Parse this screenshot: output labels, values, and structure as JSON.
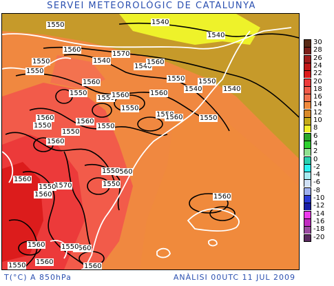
{
  "title": "SERVEI METEOROLÒGIC DE CATALUNYA",
  "footer": {
    "variable": "T(°C) A 850hPa",
    "analysis": "ANÀLISI 00UTC 11 JUL 2009"
  },
  "legend": [
    {
      "label": "30",
      "color": "#5a2a16"
    },
    {
      "label": "28",
      "color": "#7a1f1a"
    },
    {
      "label": "26",
      "color": "#a01c1c"
    },
    {
      "label": "24",
      "color": "#c21818"
    },
    {
      "label": "22",
      "color": "#dc1c1c"
    },
    {
      "label": "20",
      "color": "#ec3a3a"
    },
    {
      "label": "18",
      "color": "#f25b4a"
    },
    {
      "label": "16",
      "color": "#f3724f"
    },
    {
      "label": "14",
      "color": "#f08a3c"
    },
    {
      "label": "12",
      "color": "#d98a2a"
    },
    {
      "label": "10",
      "color": "#c5aa18"
    },
    {
      "label": "8",
      "color": "#f2f22a"
    },
    {
      "label": "6",
      "color": "#2aa82a"
    },
    {
      "label": "4",
      "color": "#2dd02d"
    },
    {
      "label": "2",
      "color": "#8fe08f"
    },
    {
      "label": "0",
      "color": "#2ad0b0"
    },
    {
      "label": "-2",
      "color": "#2af2f2"
    },
    {
      "label": "-4",
      "color": "#a8ecf2"
    },
    {
      "label": "-6",
      "color": "#cfe0f5"
    },
    {
      "label": "-8",
      "color": "#9fb0ee"
    },
    {
      "label": "-10",
      "color": "#2a3ad8"
    },
    {
      "label": "-12",
      "color": "#1a1fa8"
    },
    {
      "label": "-14",
      "color": "#ee3aee"
    },
    {
      "label": "-16",
      "color": "#c02ac0"
    },
    {
      "label": "-18",
      "color": "#9a4aa0"
    },
    {
      "label": "-20",
      "color": "#5a2a60"
    }
  ],
  "contour_labels": [
    "1550",
    "1540",
    "1540",
    "1560",
    "1570",
    "1550",
    "1540",
    "1540",
    "1560",
    "1550",
    "1560",
    "1550",
    "1550",
    "1540",
    "1550",
    "1540",
    "1560",
    "1550",
    "1560",
    "1550",
    "1550",
    "1560",
    "1550",
    "1560",
    "1550",
    "1550",
    "1560",
    "1550",
    "1560",
    "1560",
    "1570",
    "1550",
    "1550",
    "1560",
    "1560",
    "1550",
    "1560",
    "1560",
    "1560",
    "1550",
    "1550",
    "1560",
    "1560"
  ]
}
